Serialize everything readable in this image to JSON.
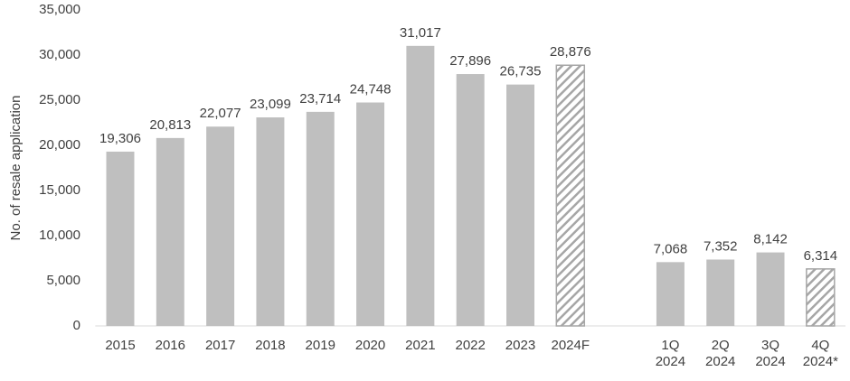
{
  "chart_data": {
    "type": "bar",
    "y_label": "No. of resale application",
    "categories": [
      "2015",
      "2016",
      "2017",
      "2018",
      "2019",
      "2020",
      "2021",
      "2022",
      "2023",
      "2024F",
      null,
      "1Q 2024",
      "2Q 2024",
      "3Q 2024",
      "4Q 2024*"
    ],
    "values": [
      19306,
      20813,
      22077,
      23099,
      23714,
      24748,
      31017,
      27896,
      26735,
      28876,
      null,
      7068,
      7352,
      8142,
      6314
    ],
    "value_labels": [
      "19,306",
      "20,813",
      "22,077",
      "23,099",
      "23,714",
      "24,748",
      "31,017",
      "27,896",
      "26,735",
      "28,876",
      null,
      "7,068",
      "7,352",
      "8,142",
      "6,314"
    ],
    "hatched": [
      false,
      false,
      false,
      false,
      false,
      false,
      false,
      false,
      false,
      true,
      false,
      false,
      false,
      false,
      true
    ],
    "color": "#bfbfbf",
    "ylim": [
      0,
      35000
    ],
    "yticks": [
      0,
      {
        "value": 5000,
        "label": "5,000"
      },
      {
        "value": 10000,
        "label": "10,000"
      },
      {
        "value": 15000,
        "label": "15,000"
      },
      {
        "value": 20000,
        "label": "20,000"
      },
      {
        "value": 25000,
        "label": "25,000"
      },
      {
        "value": 30000,
        "label": "30,000"
      },
      {
        "value": 35000,
        "label": "35,000"
      }
    ],
    "grid": false
  }
}
